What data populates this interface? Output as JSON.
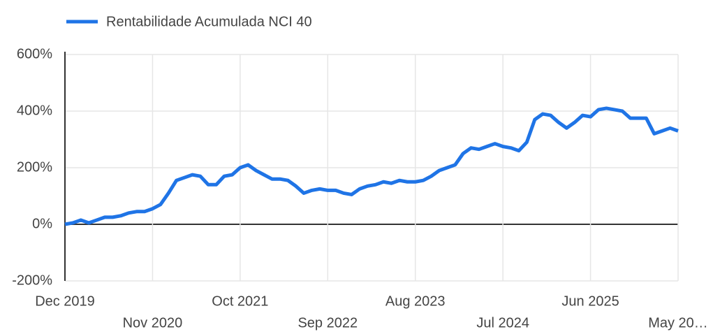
{
  "chart_data": {
    "type": "line",
    "series": [
      {
        "name": "Rentabilidade Acumulada NCI 40",
        "color": "#1f74e6",
        "x": [
          0,
          1,
          2,
          3,
          4,
          5,
          6,
          7,
          8,
          9,
          10,
          11,
          12,
          13,
          14,
          15,
          16,
          17,
          18,
          19,
          20,
          21,
          22,
          23,
          24,
          25,
          26,
          27,
          28,
          29,
          30,
          31,
          32,
          33,
          34,
          35,
          36,
          37,
          38,
          39,
          40,
          41,
          42,
          43,
          44,
          45,
          46,
          47,
          48,
          49,
          50,
          51,
          52,
          53,
          54,
          55,
          56,
          57,
          58,
          59,
          60,
          61,
          62,
          63,
          64,
          65,
          66,
          67,
          68,
          69,
          70,
          71,
          72,
          73,
          74,
          75,
          76,
          77
        ],
        "values": [
          0,
          5,
          15,
          5,
          15,
          25,
          25,
          30,
          40,
          45,
          45,
          55,
          70,
          110,
          155,
          165,
          175,
          170,
          140,
          140,
          170,
          175,
          200,
          210,
          190,
          175,
          160,
          160,
          155,
          135,
          110,
          120,
          125,
          120,
          120,
          110,
          105,
          125,
          135,
          140,
          150,
          145,
          155,
          150,
          150,
          155,
          170,
          190,
          200,
          210,
          250,
          270,
          265,
          275,
          285,
          275,
          270,
          260,
          290,
          370,
          390,
          385,
          360,
          340,
          360,
          385,
          380,
          405,
          410,
          405,
          400,
          375,
          375,
          375,
          320,
          330,
          340,
          330
        ]
      }
    ],
    "xlim": [
      0,
      77
    ],
    "xticks": [
      {
        "value": 0,
        "label": "Dec 2019"
      },
      {
        "value": 11,
        "label": "Nov 2020"
      },
      {
        "value": 22,
        "label": "Oct 2021"
      },
      {
        "value": 33,
        "label": "Sep 2022"
      },
      {
        "value": 44,
        "label": "Aug 2023"
      },
      {
        "value": 55,
        "label": "Jul 2024"
      },
      {
        "value": 66,
        "label": "Jun 2025"
      },
      {
        "value": 77,
        "label": "May 20…"
      }
    ],
    "ylim": [
      -200,
      600
    ],
    "yticks": [
      {
        "value": -200,
        "label": "-200%"
      },
      {
        "value": 0,
        "label": "0%"
      },
      {
        "value": 200,
        "label": "200%"
      },
      {
        "value": 400,
        "label": "400%"
      },
      {
        "value": 600,
        "label": "600%"
      }
    ],
    "grid": true
  }
}
